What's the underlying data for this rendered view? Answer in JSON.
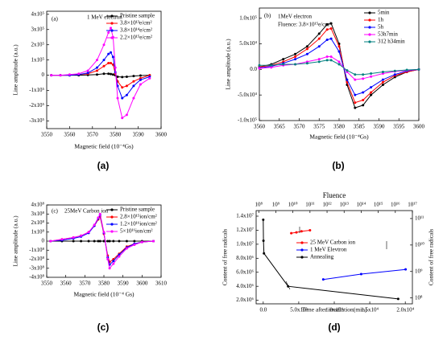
{
  "chart_data": [
    {
      "type": "line",
      "panel_label": "(a)",
      "annotations": [
        "(a)",
        "1 MeV electron"
      ],
      "xlabel": "Magnetic field (10⁻⁴Gs)",
      "ylabel": "Line amplitude (a.u.)",
      "x": [
        3552,
        3556,
        3560,
        3564,
        3568,
        3572,
        3575,
        3577,
        3578,
        3579,
        3580,
        3581,
        3583,
        3585,
        3588,
        3591,
        3595
      ],
      "xlim": [
        3550,
        3600
      ],
      "xticks": [
        3550,
        3560,
        3570,
        3580,
        3590,
        3600
      ],
      "ylim": [
        -350000,
        420000
      ],
      "yticks": [
        {
          "value": -300000,
          "label": "-3x10⁵"
        },
        {
          "value": -200000,
          "label": "-2x10⁵"
        },
        {
          "value": -100000,
          "label": "-1x10⁵"
        },
        0,
        {
          "value": 100000,
          "label": "1x10⁵"
        },
        {
          "value": 200000,
          "label": "2x10⁵"
        },
        {
          "value": 300000,
          "label": "3x10⁵"
        },
        {
          "value": 400000,
          "label": "4x10⁵"
        }
      ],
      "legend": "upper right",
      "series": [
        {
          "name": "Pristine sample",
          "color": "#000000",
          "values": [
            0,
            0,
            0,
            0,
            2000,
            5000,
            10000,
            10000,
            8000,
            5000,
            0,
            -10000,
            -12000,
            -10000,
            -5000,
            -2000,
            0
          ]
        },
        {
          "name": "3.8×10¹³e/cm²",
          "color": "#ff0000",
          "values": [
            0,
            0,
            0,
            5000,
            10000,
            30000,
            60000,
            80000,
            80000,
            70000,
            10000,
            -40000,
            -80000,
            -70000,
            -40000,
            -20000,
            0
          ]
        },
        {
          "name": "3.8×10¹⁴e/cm²",
          "color": "#0000ff",
          "values": [
            0,
            0,
            0,
            5000,
            15000,
            50000,
            100000,
            140000,
            150000,
            120000,
            20000,
            -70000,
            -150000,
            -130000,
            -70000,
            -30000,
            -10000
          ]
        },
        {
          "name": "2.2×10¹⁵e/cm²",
          "color": "#ff00ff",
          "values": [
            0,
            0,
            5000,
            10000,
            30000,
            100000,
            200000,
            280000,
            310000,
            250000,
            50000,
            -150000,
            -280000,
            -260000,
            -150000,
            -60000,
            -20000
          ]
        }
      ]
    },
    {
      "type": "line",
      "panel_label": "(b)",
      "annotations": [
        "(b)",
        "1MeV electron",
        "Fluence: 3.8×10¹⁵e/cm²"
      ],
      "xlabel": "Magnetic field (10⁻⁴Gs)",
      "ylabel": "Line amplitude (a.u.)",
      "x": [
        3560,
        3563,
        3566,
        3569,
        3572,
        3575,
        3577,
        3578,
        3580,
        3582,
        3584,
        3586,
        3588,
        3591,
        3594,
        3597,
        3600
      ],
      "xlim": [
        3560,
        3600
      ],
      "xticks": [
        3560,
        3565,
        3570,
        3575,
        3580,
        3585,
        3590,
        3595,
        3600
      ],
      "ylim": [
        -100000,
        120000
      ],
      "yticks": [
        {
          "value": -100000,
          "label": "-1.0x10⁵"
        },
        {
          "value": -50000,
          "label": "-5.0x10⁴"
        },
        {
          "value": 0,
          "label": "0.0"
        },
        {
          "value": 50000,
          "label": "5.0x10⁴"
        },
        {
          "value": 100000,
          "label": "1.0x10⁵"
        }
      ],
      "legend": "upper right",
      "series": [
        {
          "name": "5min",
          "color": "#000000",
          "values": [
            5000,
            10000,
            20000,
            30000,
            45000,
            70000,
            88000,
            90000,
            50000,
            -30000,
            -75000,
            -70000,
            -50000,
            -30000,
            -15000,
            -5000,
            0
          ]
        },
        {
          "name": "1h",
          "color": "#ff0000",
          "values": [
            5000,
            8000,
            15000,
            25000,
            40000,
            60000,
            78000,
            80000,
            45000,
            -25000,
            -65000,
            -60000,
            -45000,
            -25000,
            -12000,
            -5000,
            0
          ]
        },
        {
          "name": "5h",
          "color": "#0000ff",
          "values": [
            3000,
            6000,
            12000,
            20000,
            30000,
            45000,
            58000,
            60000,
            35000,
            -20000,
            -50000,
            -45000,
            -35000,
            -20000,
            -10000,
            -3000,
            0
          ]
        },
        {
          "name": "53h7min",
          "color": "#ff00ff",
          "values": [
            2000,
            4000,
            8000,
            10000,
            15000,
            20000,
            25000,
            25000,
            15000,
            -5000,
            -20000,
            -18000,
            -14000,
            -8000,
            -4000,
            -2000,
            0
          ]
        },
        {
          "name": "312 h34min",
          "color": "#008080",
          "values": [
            8000,
            8000,
            10000,
            10000,
            12000,
            15000,
            18000,
            18000,
            10000,
            -2000,
            -10000,
            -10000,
            -8000,
            -5000,
            -3000,
            -1000,
            0
          ]
        }
      ]
    },
    {
      "type": "line",
      "panel_label": "(c)",
      "annotations": [
        "(c)",
        "25MeV Carbon ion"
      ],
      "xlabel": "Magnetic field (10⁻⁴ Gs)",
      "ylabel": "Line amplitude (a.u.)",
      "x": [
        3552,
        3558,
        3564,
        3568,
        3572,
        3575,
        3577,
        3578,
        3580,
        3582,
        3583,
        3585,
        3588,
        3592,
        3596,
        3600,
        3606
      ],
      "xlim": [
        3550,
        3610
      ],
      "xticks": [
        3550,
        3560,
        3570,
        3580,
        3590,
        3600,
        3610
      ],
      "ylim": [
        -400000000,
        400000000
      ],
      "yticks": [
        {
          "value": -400000000,
          "label": "-4x10⁸"
        },
        {
          "value": -300000000,
          "label": "-3x10⁸"
        },
        {
          "value": -200000000,
          "label": "-2x10⁸"
        },
        {
          "value": -100000000,
          "label": "-1x10⁸"
        },
        0,
        {
          "value": 100000000,
          "label": "1x10⁸"
        },
        {
          "value": 200000000,
          "label": "2x10⁸"
        },
        {
          "value": 300000000,
          "label": "3x10⁸"
        },
        {
          "value": 400000000,
          "label": "4x10⁸"
        }
      ],
      "legend": "upper right",
      "series": [
        {
          "name": "Pristine sample",
          "color": "#000000",
          "values": [
            0,
            0,
            0,
            0,
            0,
            0,
            0,
            0,
            0,
            0,
            0,
            0,
            0,
            0,
            0,
            0,
            0
          ]
        },
        {
          "name": "2.8×10¹⁵ion/cm²",
          "color": "#ff0000",
          "values": [
            0,
            20000000,
            40000000,
            60000000,
            100000000,
            170000000,
            240000000,
            270000000,
            80000000,
            -160000000,
            -230000000,
            -200000000,
            -140000000,
            -60000000,
            -30000000,
            -10000000,
            0
          ]
        },
        {
          "name": "1.2×10¹⁶ion/cm²",
          "color": "#0000ff",
          "values": [
            0,
            10000000,
            30000000,
            50000000,
            90000000,
            170000000,
            250000000,
            290000000,
            90000000,
            -180000000,
            -260000000,
            -220000000,
            -150000000,
            -70000000,
            -30000000,
            -10000000,
            0
          ]
        },
        {
          "name": "5×10¹⁶ion/cm²",
          "color": "#ff00ff",
          "values": [
            0,
            20000000,
            40000000,
            60000000,
            100000000,
            180000000,
            260000000,
            300000000,
            100000000,
            -200000000,
            -300000000,
            -250000000,
            -170000000,
            -80000000,
            -40000000,
            -10000000,
            0
          ]
        }
      ]
    },
    {
      "type": "line",
      "panel_label": "(d)",
      "annotations": [],
      "title": "Fluence",
      "xlabel": "Time after irradiation(min)",
      "ylabel": "Content of free radicals",
      "y2label": "Content of free radicals",
      "xlim": [
        -1000,
        21000
      ],
      "xticks": [
        {
          "value": 0,
          "label": "0.0"
        },
        {
          "value": 5000,
          "label": "5.0x10³"
        },
        {
          "value": 10000,
          "label": "1.0x10⁴"
        },
        {
          "value": 15000,
          "label": "1.5x10⁴"
        },
        {
          "value": 20000,
          "label": "2.0x10⁴"
        }
      ],
      "x2lim": [
        70000000,
        100000000000000000
      ],
      "x2log": true,
      "x2ticks": [
        {
          "value": 100000000,
          "label": "10⁸"
        },
        {
          "value": 1000000000,
          "label": "10⁹"
        },
        {
          "value": 10000000000,
          "label": "10¹⁰"
        },
        {
          "value": 100000000000,
          "label": "10¹¹"
        },
        {
          "value": 1000000000000,
          "label": "10¹²"
        },
        {
          "value": 10000000000000,
          "label": "10¹³"
        },
        {
          "value": 100000000000000,
          "label": "10¹⁴"
        },
        {
          "value": 1000000000000000,
          "label": "10¹⁵"
        },
        {
          "value": 10000000000000000,
          "label": "10¹⁶"
        },
        {
          "value": 100000000000000000,
          "label": "10¹⁷"
        }
      ],
      "ylim": [
        1500000,
        14800000
      ],
      "yticks": [
        {
          "value": 2000000,
          "label": "2.0x10⁶"
        },
        {
          "value": 4000000,
          "label": "4.0x10⁶"
        },
        {
          "value": 6000000,
          "label": "6.0x10⁶"
        },
        {
          "value": 8000000,
          "label": "8.0x10⁶"
        },
        {
          "value": 10000000,
          "label": "1.0x10⁷"
        },
        {
          "value": 12000000,
          "label": "1.2x10⁷"
        },
        {
          "value": 14000000,
          "label": "1.4x10⁷"
        }
      ],
      "y2lim": [
        60000000,
        200000000000
      ],
      "y2log": true,
      "y2ticks": [
        {
          "value": 100000000,
          "label": "10⁸"
        },
        {
          "value": 1000000000,
          "label": "10⁹"
        },
        {
          "value": 10000000000,
          "label": "10¹⁰"
        },
        {
          "value": 100000000000,
          "label": "10¹¹"
        }
      ],
      "legend": "center",
      "series": [
        {
          "name": "25 MeV Carbon ion",
          "color": "#ff0000",
          "axis": "y2",
          "xaxis": "x2",
          "x": [
            8000000000,
            16000000000,
            32000000000,
            100000000000
          ],
          "values": [
            28000000000,
            30000000000,
            33000000000,
            36000000000
          ]
        },
        {
          "name": "1 MeV Elevtron",
          "color": "#0000ff",
          "axis": "y2",
          "xaxis": "x2",
          "x": [
            600000000000,
            100000000000000,
            40000000000000000
          ],
          "values": [
            500000000,
            800000000,
            1200000000
          ]
        },
        {
          "name": "Annealing",
          "color": "#000000",
          "x": [
            0,
            30,
            100,
            3500,
            19000
          ],
          "values": [
            13500000,
            10500000,
            8700000,
            4000000,
            2200000
          ]
        }
      ]
    }
  ]
}
